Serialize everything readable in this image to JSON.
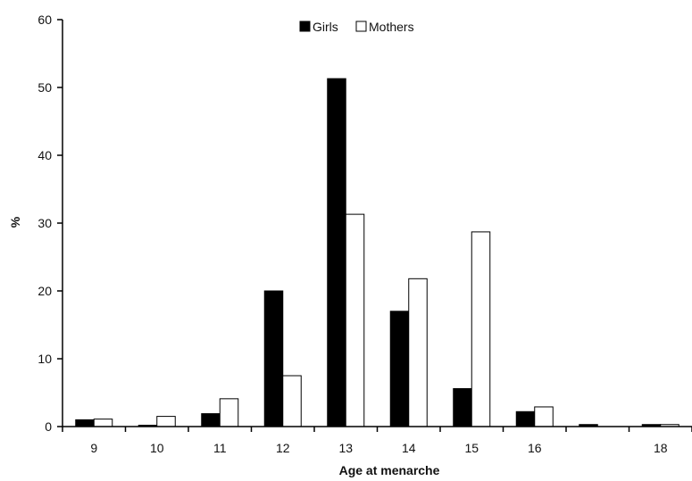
{
  "chart_data": {
    "type": "bar",
    "categories": [
      "9",
      "10",
      "11",
      "12",
      "13",
      "14",
      "15",
      "16",
      "",
      "18"
    ],
    "series": [
      {
        "name": "Girls",
        "color": "#000000",
        "values": [
          1.0,
          0.2,
          1.9,
          20.0,
          51.3,
          17.0,
          5.6,
          2.2,
          0.3,
          0.3
        ]
      },
      {
        "name": "Mothers",
        "color": "#ffffff",
        "values": [
          1.1,
          1.5,
          4.1,
          7.5,
          31.3,
          21.8,
          28.7,
          2.9,
          0.0,
          0.3
        ]
      }
    ],
    "xlabel": "Age at menarche",
    "ylabel": "%",
    "ylim": [
      0,
      60
    ],
    "yticks": [
      "0",
      "10",
      "20",
      "30",
      "40",
      "50",
      "60"
    ],
    "legend_position": "top-center",
    "grid": false
  }
}
